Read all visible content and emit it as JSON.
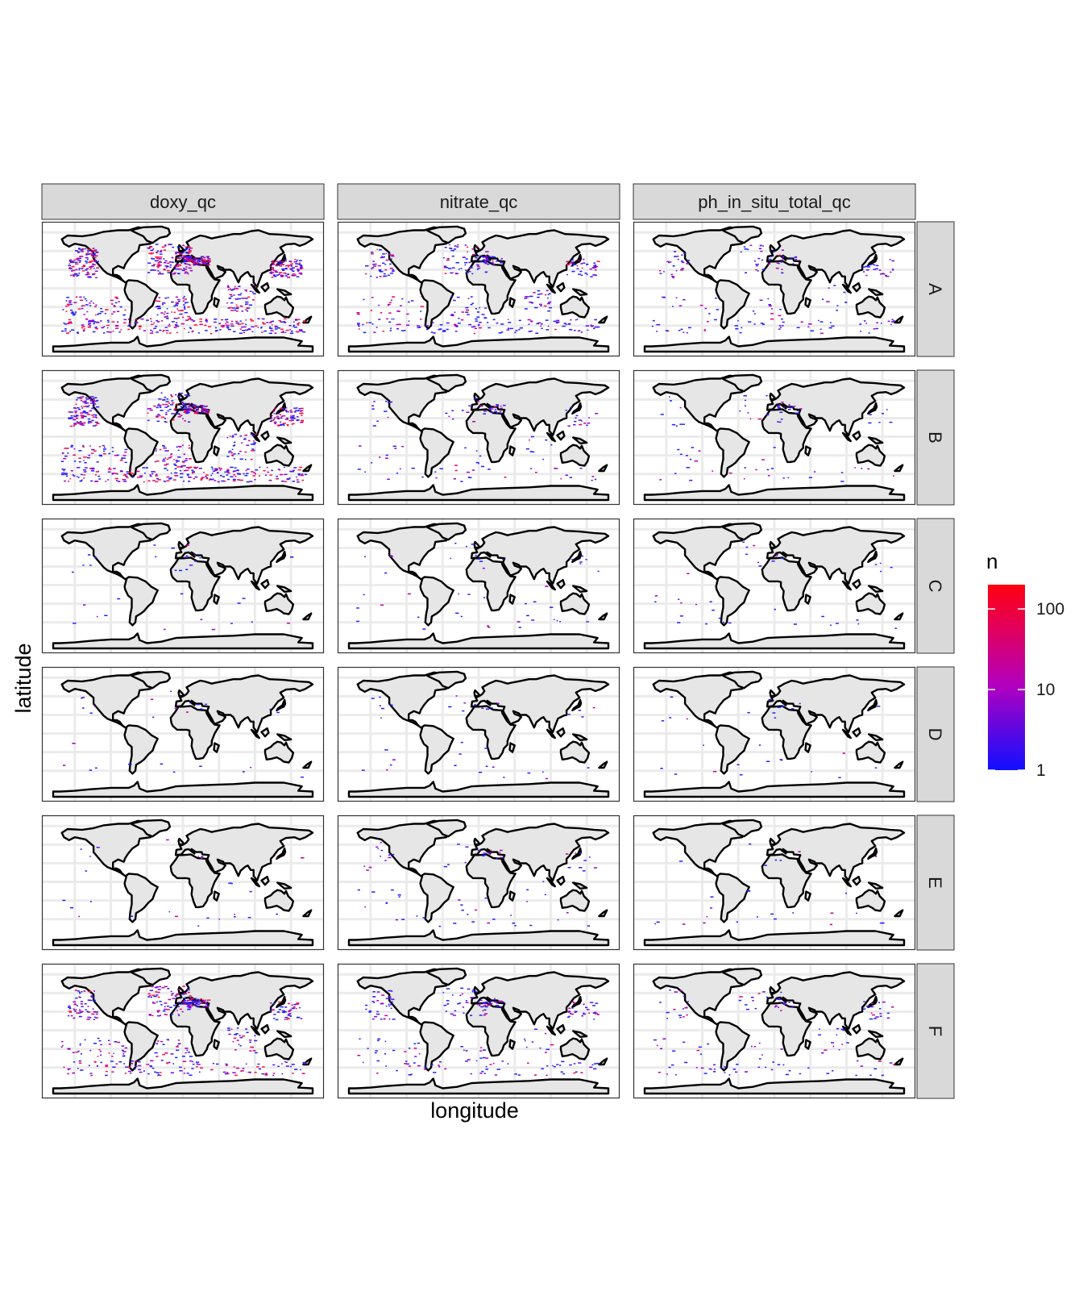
{
  "chart_data": {
    "type": "heatmap",
    "xlabel": "longitude",
    "ylabel": "latitude",
    "columns": [
      "doxy_qc",
      "nitrate_qc",
      "ph_in_situ_total_qc"
    ],
    "rows": [
      "A",
      "B",
      "C",
      "D",
      "E",
      "F"
    ],
    "legend": {
      "title": "n",
      "scale": "log10",
      "range": [
        1,
        200
      ],
      "ticks": [
        {
          "value": 1,
          "label": "1"
        },
        {
          "value": 10,
          "label": "10"
        },
        {
          "value": 100,
          "label": "100"
        }
      ],
      "color_low": "#1010ff",
      "color_mid": "#b000c0",
      "color_high": "#ff0010",
      "placement": "right"
    },
    "colors": {
      "land_fill": "#e6e6e6",
      "coast_line": "#000000",
      "grid": "#ebebeb",
      "strip_fill": "#d9d9d9"
    },
    "density": {
      "doxy_qc": [
        0.95,
        0.8,
        0.04,
        0.03,
        0.03,
        0.5
      ],
      "nitrate_qc": [
        0.4,
        0.12,
        0.05,
        0.04,
        0.08,
        0.25
      ],
      "ph_in_situ_total_qc": [
        0.2,
        0.08,
        0.04,
        0.03,
        0.03,
        0.15
      ]
    }
  }
}
